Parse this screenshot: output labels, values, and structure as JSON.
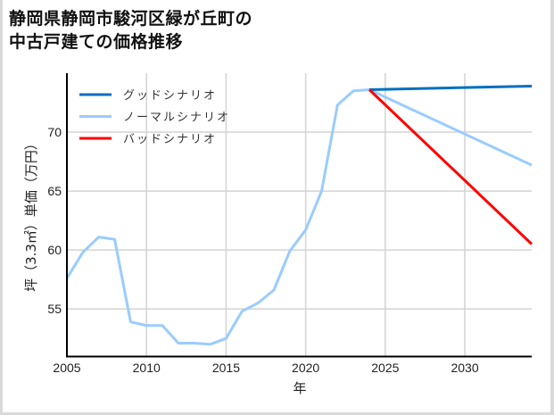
{
  "title_line1": "静岡県静岡市駿河区緑が丘町の",
  "title_line2": "中古戸建ての価格推移",
  "chart_data": {
    "type": "line",
    "title": "静岡県静岡市駿河区緑が丘町の中古戸建ての価格推移",
    "xlabel": "年",
    "ylabel": "坪（3.3㎡）単価（万円）",
    "xlim": [
      2005,
      2034.2
    ],
    "ylim": [
      51.0,
      75.0
    ],
    "x_ticks": [
      2005,
      2010,
      2015,
      2020,
      2025,
      2030
    ],
    "y_ticks": [
      55,
      60,
      65,
      70
    ],
    "grid": true,
    "legend_position": "upper left",
    "series": [
      {
        "name": "グッドシナリオ",
        "color": "#0070c0",
        "x": [
          2024,
          2034.2
        ],
        "values": [
          73.6,
          73.9
        ]
      },
      {
        "name": "ノーマルシナリオ",
        "color": "#99ccff",
        "x": [
          2005,
          2006,
          2007,
          2008,
          2009,
          2010,
          2011,
          2012,
          2013,
          2014,
          2015,
          2016,
          2017,
          2018,
          2019,
          2020,
          2021,
          2022,
          2023,
          2024,
          2034.2
        ],
        "values": [
          57.6,
          59.8,
          61.1,
          60.9,
          53.9,
          53.6,
          53.6,
          52.1,
          52.1,
          52.0,
          52.5,
          54.8,
          55.5,
          56.6,
          59.9,
          61.7,
          65.0,
          72.3,
          73.5,
          73.6,
          67.2
        ]
      },
      {
        "name": "バッドシナリオ",
        "color": "#ff0000",
        "x": [
          2024,
          2034.2
        ],
        "values": [
          73.6,
          60.5
        ]
      }
    ]
  },
  "legend": [
    {
      "label": "グッドシナリオ",
      "color": "#0070c0"
    },
    {
      "label": "ノーマルシナリオ",
      "color": "#99ccff"
    },
    {
      "label": "バッドシナリオ",
      "color": "#ff0000"
    }
  ],
  "axes": {
    "xlabel": "年",
    "ylabel": "坪（3.3㎡）単価（万円）",
    "x_tick_labels": [
      "2005",
      "2010",
      "2015",
      "2020",
      "2025",
      "2030"
    ],
    "y_tick_labels": [
      "55",
      "60",
      "65",
      "70"
    ]
  }
}
